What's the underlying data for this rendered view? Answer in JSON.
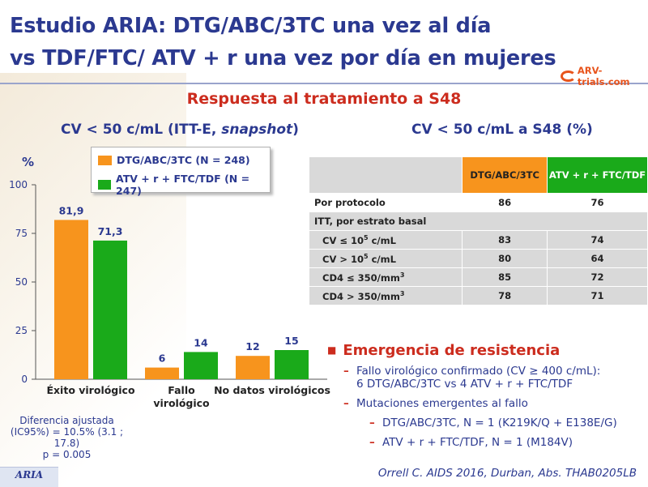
{
  "header": {
    "title_line1": "Estudio ARIA: DTG/ABC/3TC una vez al día",
    "title_line2": "vs TDF/FTC/ ATV + r una vez por día en mujeres",
    "logo_text": "ARV-trials.com"
  },
  "subtitle": "Respuesta al tratamiento a S48",
  "left_heading": "CV < 50 c/mL (ITT-E, ",
  "left_heading_italic": "snapshot",
  "left_heading_end": ")",
  "right_heading": "CV < 50 c/mL a S48 (%)",
  "colors": {
    "title": "#2b3990",
    "accent": "#cc2c1e",
    "dtg": "#f7941d",
    "atv": "#1aaa1a",
    "table_bg": "#d9d9d9"
  },
  "chart_data": {
    "type": "bar",
    "ylabel": "%",
    "ylim": [
      0,
      100
    ],
    "yticks": [
      0,
      25,
      50,
      75,
      100
    ],
    "categories": [
      "Éxito virológico",
      "Fallo\nvirológico",
      "No datos virológicos"
    ],
    "series": [
      {
        "name": "DTG/ABC/3TC (N = 248)",
        "color": "#f7941d",
        "values": [
          81.9,
          6,
          12
        ],
        "labels": [
          "81,9",
          "6",
          "12"
        ]
      },
      {
        "name": "ATV + r + FTC/TDF (N = 247)",
        "color": "#1aaa1a",
        "values": [
          71.3,
          14,
          15
        ],
        "labels": [
          "71,3",
          "14",
          "15"
        ]
      }
    ],
    "legend_position": "top"
  },
  "stats": {
    "line1": "Diferencia ajustada",
    "line2": "(IC95%) = 10.5% (3.1 ; 17.8)",
    "line3": "p = 0.005"
  },
  "table": {
    "col1": "DTG/ABC/3TC",
    "col2": "ATV + r + FTC/TDF",
    "rows": [
      {
        "label": "Por protocolo",
        "v1": "86",
        "v2": "76"
      },
      {
        "label": "ITT, por estrato basal",
        "v1": "",
        "v2": ""
      },
      {
        "label": "CV ≤ 10⁵ c/mL",
        "v1": "83",
        "v2": "74"
      },
      {
        "label": "CV > 10⁵ c/mL",
        "v1": "80",
        "v2": "64"
      },
      {
        "label": "CD4 ≤ 350/mm³",
        "v1": "85",
        "v2": "72"
      },
      {
        "label": "CD4 > 350/mm³",
        "v1": "78",
        "v2": "71"
      }
    ]
  },
  "bullets": {
    "main": "Emergencia de resistencia",
    "b1_line1": "Fallo virológico confirmado (CV ≥ 400 c/mL):",
    "b1_line2": "6 DTG/ABC/3TC vs 4 ATV + r + FTC/TDF",
    "b2": "Mutaciones emergentes al fallo",
    "b3": "DTG/ABC/3TC, N = 1 (K219K/Q + E138E/G)",
    "b4": "ATV + r + FTC/TDF, N = 1 (M184V)"
  },
  "footer": {
    "label": "ARIA",
    "citation": "Orrell C. AIDS 2016, Durban, Abs. THAB0205LB"
  }
}
